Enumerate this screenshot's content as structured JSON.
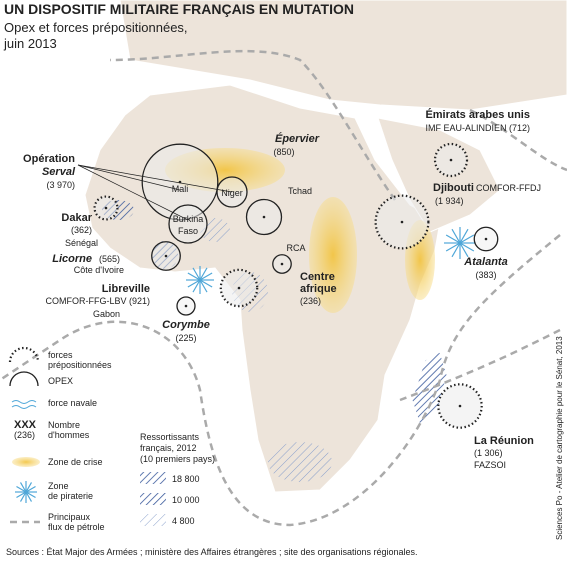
{
  "header": {
    "title": "UN DISPOSITIF MILITAIRE FRANÇAIS EN MUTATION",
    "subtitle": [
      "Opex et forces prépositionnées,",
      "juin 2013"
    ]
  },
  "bases": [
    {
      "name": "Opération",
      "name2": "Serval",
      "count": 3970,
      "count_label": "(3 970)",
      "kind": "opex"
    },
    {
      "name": "Dakar",
      "count": 362,
      "count_label": "(362)",
      "place": "Sénégal",
      "kind": "prepositioned"
    },
    {
      "name": "Licorne",
      "count": 565,
      "count_label": "(565)",
      "place": "Côte d'Ivoire",
      "kind": "opex"
    },
    {
      "name": "Libreville",
      "count": 921,
      "count_label": "COMFOR-FFG-LBV (921)",
      "place": "Gabon",
      "kind": "prepositioned"
    },
    {
      "name": "Corymbe",
      "count": 225,
      "count_label": "(225)",
      "kind": "naval"
    },
    {
      "name": "Épervier",
      "count": 850,
      "count_label": "(850)",
      "place": "Tchad",
      "kind": "opex"
    },
    {
      "name": "Centre",
      "name2": "afrique",
      "count": 236,
      "count_label": "(236)",
      "place": "RCA",
      "kind": "opex"
    },
    {
      "name": "Émirats arabes unis",
      "count": 712,
      "count_label": "IMF EAU-ALINDIEN (712)",
      "kind": "prepositioned"
    },
    {
      "name": "Djibouti",
      "count": 1934,
      "count_label": "(1 934)",
      "place": "COMFOR-FFDJ",
      "kind": "prepositioned"
    },
    {
      "name": "Atalanta",
      "count": 383,
      "count_label": "(383)",
      "kind": "naval"
    },
    {
      "name": "La Réunion",
      "count": 1306,
      "count_label": "(1 306)",
      "place": "FAZSOI",
      "kind": "prepositioned"
    }
  ],
  "countries": [
    "Mali",
    "Niger",
    "Burkina",
    "Faso"
  ],
  "legend": {
    "prepositioned": [
      "forces",
      "prépositionnées"
    ],
    "opex": "OPEX",
    "naval": "force navale",
    "count_example": "XXX",
    "count_example_sub": "(236)",
    "count_meaning": [
      "Nombre",
      "d'hommes"
    ],
    "crisis": "Zone de crise",
    "piracy": [
      "Zone",
      "de piraterie"
    ],
    "oil": [
      "Principaux",
      "flux de pétrole"
    ],
    "residents_title": [
      "Ressortissants",
      "français, 2012",
      "(10 premiers pays)"
    ],
    "residents": [
      "18 800",
      "10 000",
      "4 800"
    ]
  },
  "source": "Sources : État Major des Armées ; ministère des Affaires étrangères ; site des organisations régionales.",
  "credit": "Sciences Po - Atelier de cartographie pour le Sénat, 2013"
}
